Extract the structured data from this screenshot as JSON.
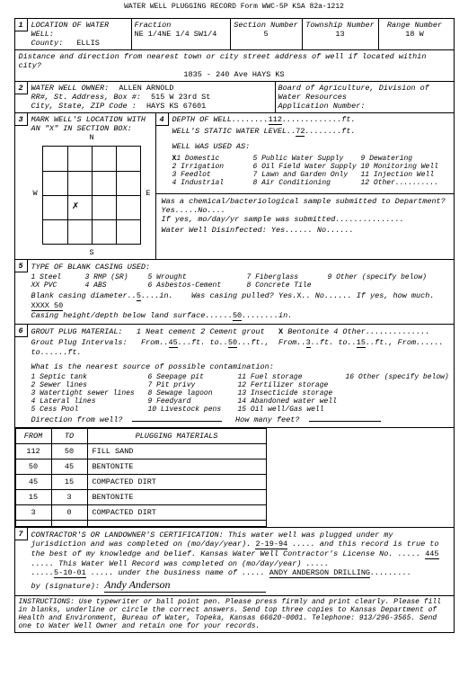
{
  "header": "WATER WELL PLUGGING RECORD      Form WWC-5P      KSA 82a-1212",
  "sec1": {
    "title": "LOCATION OF WATER WELL:",
    "county_label": "County:",
    "county": "ELLIS",
    "fraction_label": "Fraction",
    "fraction": "NE 1/4NE 1/4 SW1/4",
    "section_label": "Section Number",
    "section": "5",
    "township_label": "Township Number",
    "township": "13",
    "range_label": "Range Number",
    "range": "18 W",
    "distance_label": "Distance and direction from nearest town or city street address of well if located within city?",
    "distance": "1835 - 240 Ave       HAYS KS"
  },
  "sec2": {
    "title": "WATER WELL OWNER:",
    "owner": "ALLEN ARNOLD",
    "addr_label": "RR#, St. Address, Box #:",
    "addr": "515 W 23rd St",
    "city_label": "City, State, ZIP Code :",
    "city": "HAYS KS  67601",
    "board": "Board of Agriculture, Division of Water Resources",
    "app_label": "Application Number:"
  },
  "sec3": {
    "title": "MARK WELL'S LOCATION WITH AN \"X\" IN SECTION BOX:",
    "n": "N",
    "s": "S",
    "e": "E",
    "w": "W"
  },
  "sec4": {
    "depth_label": "DEPTH OF WELL",
    "depth": "112",
    "ft": "ft.",
    "static_label": "WELL'S STATIC WATER LEVEL",
    "static": "72",
    "used_label": "WELL WAS USED AS:",
    "uses": [
      "1 Domestic",
      "5 Public Water Supply",
      "9 Dewatering",
      "2 Irrigation",
      "6 Oil Field Water Supply",
      "10 Monitoring Well",
      "3 Feedlot",
      "7 Lawn and Garden Only",
      "11 Injection Well",
      "4 Industrial",
      "8 Air Conditioning",
      "12 Other"
    ],
    "x_mark": "X",
    "chem_label": "Was a chemical/bacteriological sample submitted to Department? Yes.....No....",
    "chem_if": "If yes, mo/day/yr sample was submitted",
    "disinfect": "Water Well Disinfected:   Yes......   No......"
  },
  "sec5": {
    "title": "TYPE OF BLANK CASING USED:",
    "types": [
      "1 Steel",
      "3 RMP (SR)",
      "5 Wrought",
      "7 Fiberglass",
      "9 Other (specify below)",
      "XX PVC",
      "4 ABS",
      "6 Asbestos-Cement",
      "8 Concrete Tile"
    ],
    "diameter_label": "Blank casing diameter",
    "diameter": "5",
    "in": "in.",
    "pulled_label": "Was casing pulled?  Yes.",
    "pulled_x": "X",
    "pulled_no": "..  No......  If yes, how much.",
    "pulled_amt": "XXXX  50",
    "height_label": "Casing height/depth below land surface",
    "height": "50",
    "height_in": "in."
  },
  "sec6": {
    "title": "GROUT PLUG MATERIAL:",
    "materials": "1 Neat cement      2 Cement grout",
    "mat_x": "X",
    "mat_rest": "Bentonite     4 Other",
    "intervals_label": "Grout Plug Intervals:",
    "int1_from": "From",
    "int1_from_v": "45",
    "int1_to": "ft. to",
    "int1_to_v": "50",
    "int1_ft": "ft.,",
    "int2_from": "From",
    "int2_from_v": "3",
    "int2_to": "ft. to",
    "int2_to_v": "15",
    "int2_ft": "ft.,  From......  to......ft.",
    "source_label": "What is the nearest source of possible contamination:",
    "sources": [
      "1 Septic tank",
      "6 Seepage pit",
      "11 Fuel storage",
      "16 Other (specify below)",
      "2 Sewer lines",
      "7 Pit privy",
      "12 Fertilizer storage",
      "",
      "3 Watertight sewer lines",
      "8 Sewage lagoon",
      "13 Insecticide storage",
      "",
      "4 Lateral lines",
      "9 Feedyard",
      "14 Abandoned water well",
      "",
      "5 Cess Pool",
      "10 Livestock pens",
      "15 Oil well/Gas well",
      ""
    ],
    "dir_label": "Direction from well?",
    "howmany": "How many feet?",
    "table_h1": "FROM",
    "table_h2": "TO",
    "table_h3": "PLUGGING MATERIALS",
    "rows": [
      [
        "112",
        "50",
        "FILL SAND"
      ],
      [
        "50",
        "45",
        "BENTONITE"
      ],
      [
        "45",
        "15",
        "COMPACTED DIRT"
      ],
      [
        "15",
        "3",
        "BENTONITE"
      ],
      [
        "3",
        "0",
        "COMPACTED DIRT"
      ],
      [
        "",
        "",
        ""
      ]
    ]
  },
  "sec7": {
    "title": "CONTRACTOR'S OR LANDOWNER'S CERTIFICATION:",
    "text1": "This water well was plugged under my jurisdiction and was completed on (mo/day/year).",
    "date": "2-19-94",
    "text2": ".....  and this record is true to the best of my knowledge and belief.  Kansas Water Well Contractor's License No. .....",
    "lic": "445",
    "text3": ".....  This Water Well Record was completed on (mo/day/year) .....",
    "date2": "5-10-01",
    "text4": "..... under the business name of .....",
    "biz": "ANDY ANDERSON DRILLING",
    "by": "by (signature):",
    "sig": "Andy Anderson"
  },
  "instructions": "INSTRUCTIONS:  Use typewriter or ball point pen.  Please press firmly and print clearly.  Please fill in blanks, underline or circle the correct answers.  Send top three copies to Kansas Department of Health and Environment, Bureau of Water, Topeka, Kansas  66620-0001.  Telephone:  913/296-3565.  Send one to Water Well Owner and retain one for your records."
}
